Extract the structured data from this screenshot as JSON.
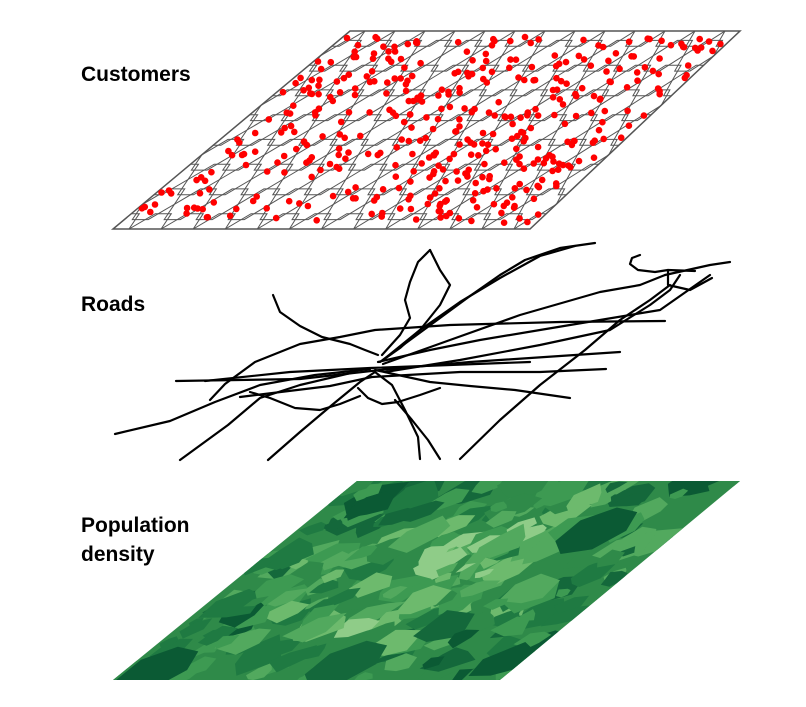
{
  "layers": [
    {
      "id": "customers",
      "label": "Customers"
    },
    {
      "id": "roads",
      "label": "Roads"
    },
    {
      "id": "population",
      "label_line1": "Population",
      "label_line2": "density"
    }
  ],
  "colors": {
    "customer_point": "#ff0000",
    "grid_line": "#555555",
    "road_line": "#000000",
    "density_dark": "#0b5a34",
    "density_mid": "#3d9a52",
    "density_light": "#a5d9a0"
  },
  "icons": {
    "customers_layer": "hexagon-grid-with-points",
    "roads_layer": "road-network-lines",
    "population_layer": "choropleth-green-map"
  }
}
